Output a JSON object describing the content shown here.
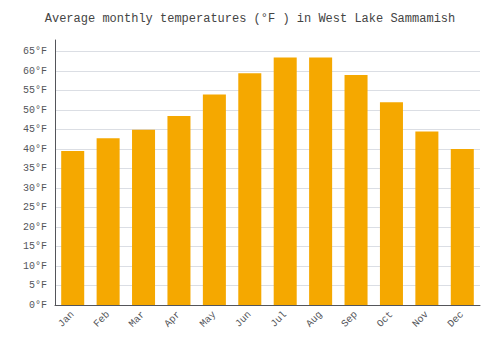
{
  "chart_data": {
    "type": "bar",
    "title": "Average monthly temperatures (°F ) in West Lake Sammamish",
    "categories": [
      "Jan",
      "Feb",
      "Mar",
      "Apr",
      "May",
      "Jun",
      "Jul",
      "Aug",
      "Sep",
      "Oct",
      "Nov",
      "Dec"
    ],
    "values": [
      39.5,
      42.8,
      45.0,
      48.5,
      54.0,
      59.5,
      63.5,
      63.5,
      59.0,
      52.0,
      44.5,
      40.0
    ],
    "color": "#F5A800",
    "ylim": [
      0,
      68
    ],
    "yticks": [
      {
        "value": 0,
        "label": "0°F"
      },
      {
        "value": 5,
        "label": "5°F"
      },
      {
        "value": 10,
        "label": "10°F"
      },
      {
        "value": 15,
        "label": "15°F"
      },
      {
        "value": 20,
        "label": "20°F"
      },
      {
        "value": 25,
        "label": "25°F"
      },
      {
        "value": 30,
        "label": "30°F"
      },
      {
        "value": 35,
        "label": "35°F"
      },
      {
        "value": 40,
        "label": "40°F"
      },
      {
        "value": 45,
        "label": "45°F"
      },
      {
        "value": 50,
        "label": "50°F"
      },
      {
        "value": 55,
        "label": "55°F"
      },
      {
        "value": 60,
        "label": "60°F"
      },
      {
        "value": 65,
        "label": "65°F"
      }
    ],
    "grid": true
  }
}
